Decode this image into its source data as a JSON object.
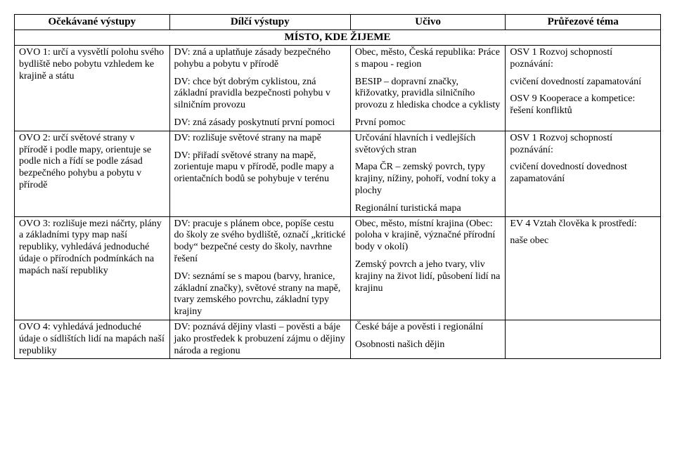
{
  "headers": {
    "c1": "Očekávané výstupy",
    "c2": "Dílčí výstupy",
    "c3": "Učivo",
    "c4": "Průřezové téma"
  },
  "section_title": "MÍSTO, KDE ŽIJEME",
  "rows": [
    {
      "c1": "OVO 1: určí a vysvětlí polohu svého bydliště nebo pobytu vzhledem ke krajině a státu",
      "c2_a": "DV: zná a uplatňuje zásady bezpečného pohybu a pobytu v přírodě",
      "c2_b": "DV: chce být dobrým cyklistou, zná základní pravidla bezpečnosti pohybu v silničním provozu",
      "c2_c": "DV: zná zásady poskytnutí první pomoci",
      "c3_a": "Obec, město, Česká republika: Práce s mapou - region",
      "c3_b": "BESIP – dopravní značky, křižovatky, pravidla silničního provozu z hlediska chodce a cyklisty",
      "c3_c": "První pomoc",
      "c4_a": "OSV 1 Rozvoj schopností poznávání:",
      "c4_b": "cvičení dovedností zapamatování",
      "c4_c": "OSV 9 Kooperace a kompetice: řešení konfliktů"
    },
    {
      "c1": "OVO 2: určí světové strany v přírodě i podle mapy, orientuje se podle nich a řídí se podle zásad bezpečného pohybu a pobytu v přírodě",
      "c2_a": "DV: rozlišuje světové strany na mapě",
      "c2_b": "DV: přiřadí světové strany na mapě, zorientuje mapu v přírodě, podle mapy a orientačních bodů se pohybuje v terénu",
      "c3_a": "Určování hlavních i vedlejších světových stran",
      "c3_b": "Mapa ČR – zemský povrch, typy krajiny, nížiny, pohoří, vodní toky a plochy",
      "c3_c": "Regionální turistická mapa",
      "c4_a": "OSV 1 Rozvoj schopností poznávání:",
      "c4_b": "cvičení dovedností dovednost zapamatování"
    },
    {
      "c1": "OVO 3: rozlišuje mezi náčrty, plány a základními typy map naší republiky, vyhledává jednoduché údaje o přírodních podmínkách na mapách naší republiky",
      "c2_a": "DV: pracuje s plánem obce, popíše cestu do školy ze svého bydliště, označí „kritické body“ bezpečné cesty do školy, navrhne řešení",
      "c2_b": "DV: seznámí se s mapou (barvy, hranice, základní značky), světové strany na mapě, tvary zemského povrchu, základní typy krajiny",
      "c3_a": "Obec, město, místní krajina (Obec: poloha v krajině, význačné přírodní body v okolí)",
      "c3_b": "Zemský povrch a jeho tvary, vliv krajiny na život lidí, působení lidí na krajinu",
      "c4_a": "EV 4 Vztah člověka k prostředí:",
      "c4_b": "naše obec"
    },
    {
      "c1": "OVO 4: vyhledává jednoduché údaje o sídlištích lidí na mapách naší republiky",
      "c2_a": "DV: poznává dějiny vlasti – pověsti a báje jako prostředek k probuzení zájmu o dějiny národa a regionu",
      "c3_a": "České báje a pověsti i regionální",
      "c3_b": "Osobnosti našich dějin",
      "c4_a": ""
    }
  ]
}
